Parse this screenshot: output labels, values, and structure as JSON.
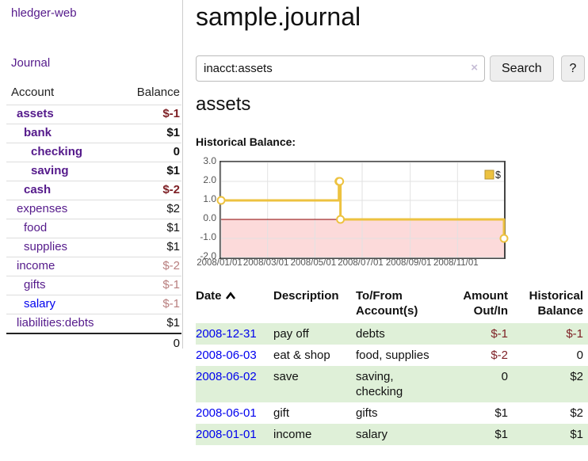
{
  "app": {
    "title": "hledger-web",
    "nav_journal": "Journal"
  },
  "sidebar": {
    "accounts_header": {
      "account": "Account",
      "balance": "Balance"
    },
    "accounts": [
      {
        "name": "assets",
        "balance": "$-1",
        "depth": 0,
        "bold": true,
        "link_color": "purple",
        "balance_tone": "negative"
      },
      {
        "name": "bank",
        "balance": "$1",
        "depth": 1,
        "bold": true,
        "link_color": "purple",
        "balance_tone": "normal"
      },
      {
        "name": "checking",
        "balance": "0",
        "depth": 2,
        "bold": true,
        "link_color": "purple",
        "balance_tone": "normal"
      },
      {
        "name": "saving",
        "balance": "$1",
        "depth": 2,
        "bold": true,
        "link_color": "purple",
        "balance_tone": "normal"
      },
      {
        "name": "cash",
        "balance": "$-2",
        "depth": 1,
        "bold": true,
        "link_color": "purple",
        "balance_tone": "negative"
      },
      {
        "name": "expenses",
        "balance": "$2",
        "depth": 0,
        "bold": false,
        "link_color": "purple",
        "balance_tone": "normal"
      },
      {
        "name": "food",
        "balance": "$1",
        "depth": 1,
        "bold": false,
        "link_color": "purple",
        "balance_tone": "normal"
      },
      {
        "name": "supplies",
        "balance": "$1",
        "depth": 1,
        "bold": false,
        "link_color": "purple",
        "balance_tone": "normal"
      },
      {
        "name": "income",
        "balance": "$-2",
        "depth": 0,
        "bold": false,
        "link_color": "purple",
        "balance_tone": "negative_light"
      },
      {
        "name": "gifts",
        "balance": "$-1",
        "depth": 1,
        "bold": false,
        "link_color": "purple",
        "balance_tone": "negative_light"
      },
      {
        "name": "salary",
        "balance": "$-1",
        "depth": 1,
        "bold": false,
        "link_color": "blue",
        "balance_tone": "negative_light"
      },
      {
        "name": "liabilities:debts",
        "balance": "$1",
        "depth": 0,
        "bold": false,
        "link_color": "purple",
        "balance_tone": "normal"
      }
    ],
    "total": "0"
  },
  "header": {
    "title": "sample.journal"
  },
  "search": {
    "value": "inacct:assets",
    "clear_icon": "×",
    "button_label": "Search",
    "help_label": "?"
  },
  "account_page": {
    "title": "assets",
    "chart_label": "Historical Balance:"
  },
  "chart_data": {
    "type": "line",
    "title": "Historical Balance:",
    "line_style": "step-after",
    "xlim": [
      "2008-01-01",
      "2008-12-31"
    ],
    "ylim": [
      -2,
      3
    ],
    "grid": true,
    "y_ticks": [
      {
        "label": "3.0",
        "value": 3
      },
      {
        "label": "2.0",
        "value": 2
      },
      {
        "label": "1.0",
        "value": 1
      },
      {
        "label": "0.0",
        "value": 0
      },
      {
        "label": "-1.0",
        "value": -1
      },
      {
        "label": "-2.0",
        "value": -2
      }
    ],
    "x_ticks": [
      {
        "label": "2008/01/01",
        "date": "2008-01-01"
      },
      {
        "label": "2008/03/01",
        "date": "2008-03-01"
      },
      {
        "label": "2008/05/01",
        "date": "2008-05-01"
      },
      {
        "label": "2008/07/01",
        "date": "2008-07-01"
      },
      {
        "label": "2008/09/01",
        "date": "2008-09-01"
      },
      {
        "label": "2008/11/01",
        "date": "2008-11-01"
      }
    ],
    "series": [
      {
        "name": "$",
        "color": "#EDC240",
        "marker": "circle",
        "points": [
          [
            "2008-01-01",
            1
          ],
          [
            "2008-06-01",
            2
          ],
          [
            "2008-06-02",
            2
          ],
          [
            "2008-06-03",
            0
          ],
          [
            "2008-12-31",
            -1
          ]
        ]
      }
    ],
    "legend": {
      "label": "$",
      "position": "top-right",
      "swatch_color": "#EDC240",
      "swatch_border": "#b89530"
    },
    "colors": {
      "negative_region_fill": "#fcdada",
      "zero_line": "#8b0000",
      "gridline": "#e2e2e2",
      "frame": "#454545",
      "tick_text": "#545454"
    }
  },
  "register": {
    "columns": [
      "Date",
      "Description",
      "To/From Account(s)",
      "Amount Out/In",
      "Historical Balance"
    ],
    "sort": {
      "column": "Date",
      "direction": "ascending"
    },
    "rows": [
      {
        "date": "2008-12-31",
        "description": "pay off",
        "accounts": "debts",
        "amount": "$-1",
        "amount_negative": true,
        "balance": "$-1",
        "balance_negative": true
      },
      {
        "date": "2008-06-03",
        "description": "eat & shop",
        "accounts": "food, supplies",
        "amount": "$-2",
        "amount_negative": true,
        "balance": "0",
        "balance_negative": false
      },
      {
        "date": "2008-06-02",
        "description": "save",
        "accounts": [
          "saving,",
          "checking"
        ],
        "amount": "0",
        "amount_negative": false,
        "balance": "$2",
        "balance_negative": false
      },
      {
        "date": "2008-06-01",
        "description": "gift",
        "accounts": "gifts",
        "amount": "$1",
        "amount_negative": false,
        "balance": "$2",
        "balance_negative": false
      },
      {
        "date": "2008-01-01",
        "description": "income",
        "accounts": "salary",
        "amount": "$1",
        "amount_negative": false,
        "balance": "$1",
        "balance_negative": false
      }
    ]
  }
}
